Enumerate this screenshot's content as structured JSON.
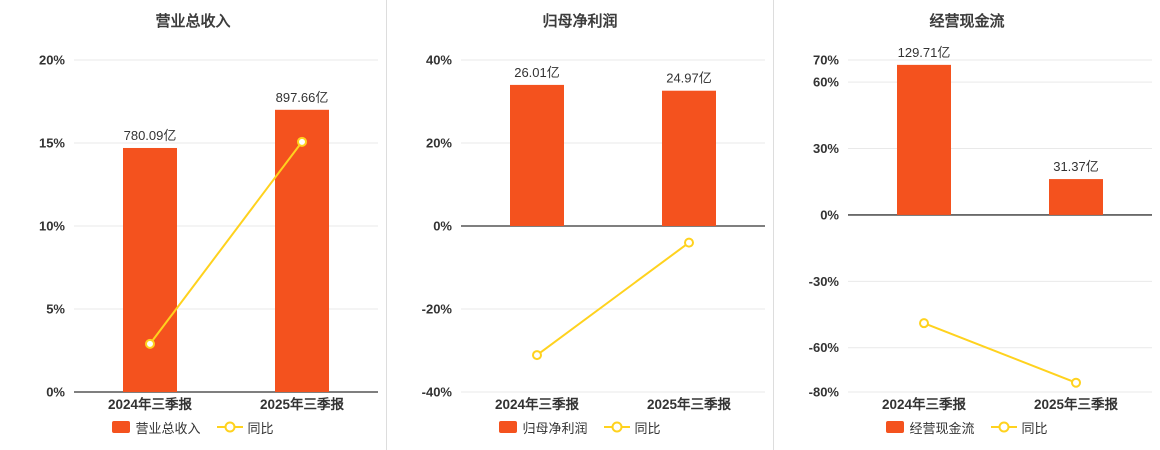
{
  "colors": {
    "bar": "#f4521e",
    "line": "#ffd21e",
    "marker_fill": "#ffffff",
    "axis": "#555555",
    "grid": "#e9e9e9",
    "tick_text": "#333333",
    "label_text": "#333333",
    "title_text": "#3c3c3c",
    "divider": "#dddddd",
    "background": "#ffffff"
  },
  "chart_data": [
    {
      "type": "bar",
      "title": "营业总收入",
      "categories": [
        "2024年三季报",
        "2025年三季报"
      ],
      "bar_series": {
        "name": "营业总收入",
        "value_labels": [
          "780.09亿",
          "897.66亿"
        ],
        "display_pct": [
          14.7,
          17.0
        ]
      },
      "line_series": {
        "name": "同比",
        "values_pct": [
          2.9,
          15.07
        ]
      },
      "ylim": [
        0,
        20
      ],
      "yticks": [
        0,
        5,
        10,
        15,
        20
      ],
      "ytick_suffix": "%",
      "legend": [
        "营业总收入",
        "同比"
      ],
      "legend_position": "bottom",
      "grid": true
    },
    {
      "type": "bar",
      "title": "归母净利润",
      "categories": [
        "2024年三季报",
        "2025年三季报"
      ],
      "bar_series": {
        "name": "归母净利润",
        "value_labels": [
          "26.01亿",
          "24.97亿"
        ],
        "display_pct": [
          34.0,
          32.6
        ]
      },
      "line_series": {
        "name": "同比",
        "values_pct": [
          -31.1,
          -4.0
        ]
      },
      "ylim": [
        -40,
        40
      ],
      "yticks": [
        -40,
        -20,
        0,
        20,
        40
      ],
      "ytick_suffix": "%",
      "legend": [
        "归母净利润",
        "同比"
      ],
      "legend_position": "bottom",
      "grid": true
    },
    {
      "type": "bar",
      "title": "经营现金流",
      "categories": [
        "2024年三季报",
        "2025年三季报"
      ],
      "bar_series": {
        "name": "经营现金流",
        "value_labels": [
          "129.71亿",
          "31.37亿"
        ],
        "display_pct": [
          67.8,
          16.2
        ]
      },
      "line_series": {
        "name": "同比",
        "values_pct": [
          -48.9,
          -75.8
        ]
      },
      "ylim": [
        -80,
        70
      ],
      "yticks": [
        -80,
        -60,
        -30,
        0,
        30,
        60,
        70
      ],
      "ytick_suffix": "%",
      "legend": [
        "经营现金流",
        "同比"
      ],
      "legend_position": "bottom",
      "grid": true
    }
  ]
}
